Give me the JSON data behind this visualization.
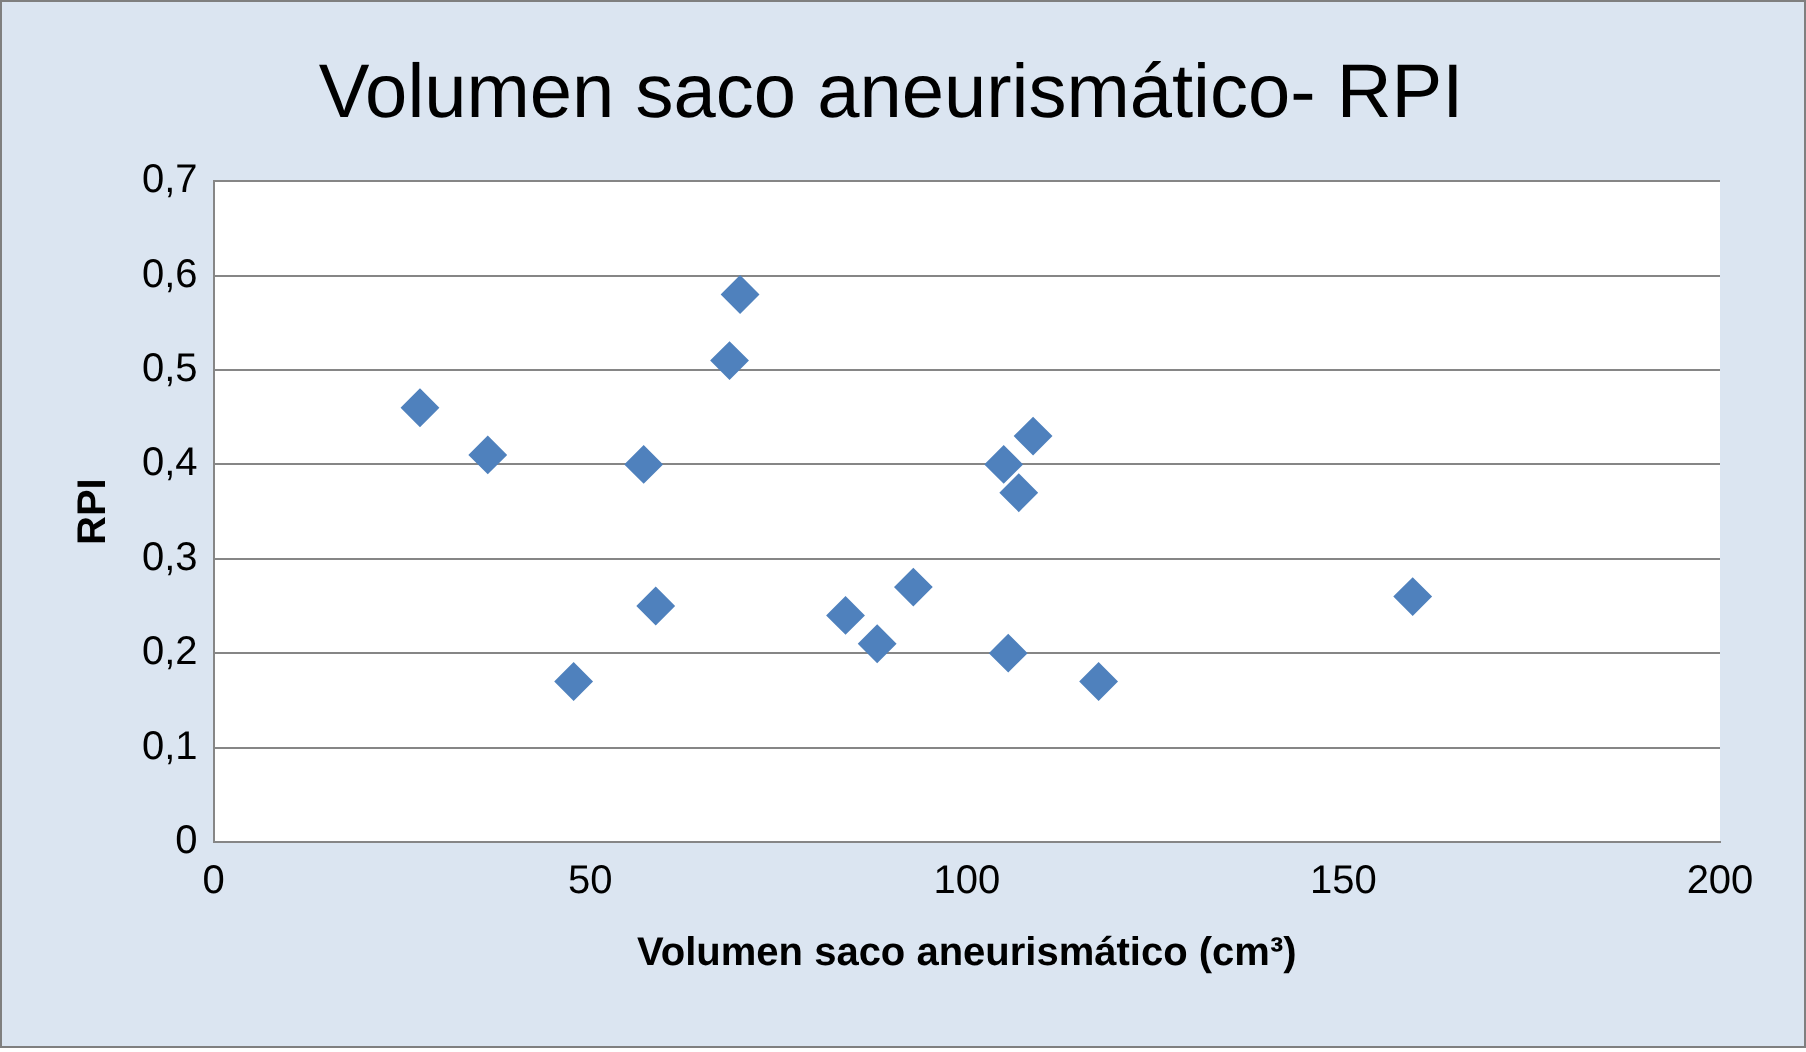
{
  "chart_data": {
    "type": "scatter",
    "title": "Volumen saco aneurismático- RPI",
    "xlabel": "Volumen saco aneurismático (cm³)",
    "ylabel": "RPI",
    "x": [
      27.4,
      36.4,
      47.8,
      57.1,
      58.7,
      68.5,
      69.9,
      83.9,
      88.1,
      92.9,
      104.9,
      105.5,
      106.9,
      108.8,
      117.5,
      159.2
    ],
    "series": [
      {
        "color": "#4f81bd",
        "values": [
          0.46,
          0.41,
          0.17,
          0.4,
          0.25,
          0.51,
          0.58,
          0.24,
          0.21,
          0.27,
          0.4,
          0.2,
          0.37,
          0.43,
          0.17,
          0.26
        ]
      }
    ],
    "xlim": [
      0,
      200
    ],
    "xticks": [
      0,
      50,
      100,
      150,
      200
    ],
    "ylim": [
      0,
      0.7
    ],
    "yticks": [
      0,
      {
        "value": 0.1,
        "label": "0,1"
      },
      {
        "value": 0.2,
        "label": "0,2"
      },
      {
        "value": 0.3,
        "label": "0,3"
      },
      {
        "value": 0.4,
        "label": "0,4"
      },
      {
        "value": 0.5,
        "label": "0,5"
      },
      {
        "value": 0.6,
        "label": "0,6"
      },
      {
        "value": 0.7,
        "label": "0,7"
      }
    ],
    "grid": "y",
    "legend": false,
    "marker": "diamond"
  }
}
